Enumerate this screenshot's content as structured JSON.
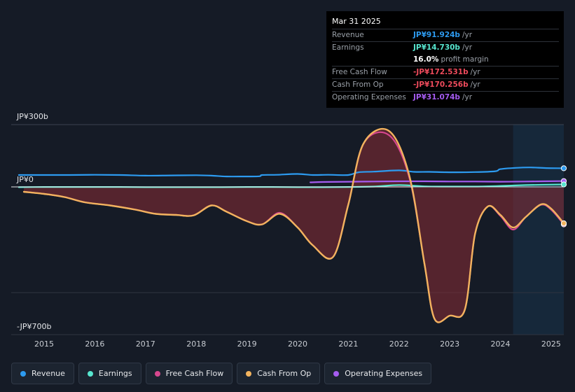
{
  "tooltip": {
    "date": "Mar 31 2025",
    "rows": [
      {
        "label": "Revenue",
        "value": "JP¥91.924b",
        "unit": "/yr",
        "color": "#2d9bf0"
      },
      {
        "label": "Earnings",
        "value": "JP¥14.730b",
        "unit": "/yr",
        "color": "#57e6cf"
      },
      {
        "label": "",
        "value": "16.0%",
        "unit": "profit margin",
        "color": "#ffffff"
      },
      {
        "label": "Free Cash Flow",
        "value": "-JP¥172.531b",
        "unit": "/yr",
        "color": "#ef4b5c"
      },
      {
        "label": "Cash From Op",
        "value": "-JP¥170.256b",
        "unit": "/yr",
        "color": "#ef4b5c"
      },
      {
        "label": "Operating Expenses",
        "value": "JP¥31.074b",
        "unit": "/yr",
        "color": "#a55cf0"
      }
    ]
  },
  "legend": [
    {
      "label": "Revenue",
      "color": "#2d9bf0"
    },
    {
      "label": "Earnings",
      "color": "#57e6cf"
    },
    {
      "label": "Free Cash Flow",
      "color": "#d6478e"
    },
    {
      "label": "Cash From Op",
      "color": "#f2b35e"
    },
    {
      "label": "Operating Expenses",
      "color": "#a55cf0"
    }
  ],
  "chart_data": {
    "type": "area",
    "title": "",
    "xlabel": "",
    "ylabel": "",
    "y_tick_labels": [
      "JP¥300b",
      "JP¥0",
      "-JP¥700b"
    ],
    "ylim": [
      -700,
      300
    ],
    "xlim": [
      2014.35,
      2025.25
    ],
    "x_tick_labels": [
      "2015",
      "2016",
      "2017",
      "2018",
      "2019",
      "2020",
      "2021",
      "2022",
      "2023",
      "2024",
      "2025"
    ],
    "x_ticks": [
      2015,
      2016,
      2017,
      2018,
      2019,
      2020,
      2021,
      2022,
      2023,
      2024,
      2025
    ],
    "forecast_region_start": 2024.25,
    "units": "JP¥b",
    "series": [
      {
        "name": "Revenue",
        "color": "#2d9bf0",
        "points": [
          [
            2014.5,
            60
          ],
          [
            2015,
            60
          ],
          [
            2015.5,
            60
          ],
          [
            2016,
            61
          ],
          [
            2016.5,
            60
          ],
          [
            2017,
            57
          ],
          [
            2017.5,
            58
          ],
          [
            2018,
            59
          ],
          [
            2018.3,
            57
          ],
          [
            2018.6,
            53
          ],
          [
            2019,
            53
          ],
          [
            2019.25,
            54
          ],
          [
            2019.3,
            60
          ],
          [
            2019.6,
            61
          ],
          [
            2020,
            65
          ],
          [
            2020.3,
            60
          ],
          [
            2020.6,
            61
          ],
          [
            2021,
            60
          ],
          [
            2021.2,
            73
          ],
          [
            2021.5,
            76
          ],
          [
            2022,
            82
          ],
          [
            2022.3,
            75
          ],
          [
            2022.6,
            75
          ],
          [
            2023,
            73
          ],
          [
            2023.5,
            74
          ],
          [
            2023.9,
            78
          ],
          [
            2024,
            88
          ],
          [
            2024.3,
            94
          ],
          [
            2024.6,
            96
          ],
          [
            2024.9,
            93
          ],
          [
            2025.25,
            92
          ]
        ]
      },
      {
        "name": "Earnings",
        "color": "#57e6cf",
        "points": [
          [
            2014.5,
            2
          ],
          [
            2015,
            3
          ],
          [
            2015.5,
            3
          ],
          [
            2016,
            3
          ],
          [
            2016.5,
            3
          ],
          [
            2017,
            2
          ],
          [
            2017.5,
            2
          ],
          [
            2018,
            2
          ],
          [
            2018.5,
            2
          ],
          [
            2019,
            3
          ],
          [
            2019.5,
            3
          ],
          [
            2020,
            2
          ],
          [
            2020.5,
            2
          ],
          [
            2021,
            3
          ],
          [
            2021.5,
            5
          ],
          [
            2022,
            12
          ],
          [
            2022.5,
            6
          ],
          [
            2023,
            5
          ],
          [
            2023.5,
            5
          ],
          [
            2024,
            8
          ],
          [
            2024.5,
            12
          ],
          [
            2025.25,
            15
          ]
        ]
      },
      {
        "name": "Free Cash Flow",
        "color": "#d6478e",
        "points": [
          [
            2014.6,
            -20
          ],
          [
            2015,
            -30
          ],
          [
            2015.4,
            -45
          ],
          [
            2015.8,
            -70
          ],
          [
            2016.3,
            -85
          ],
          [
            2016.8,
            -105
          ],
          [
            2017.2,
            -125
          ],
          [
            2017.6,
            -130
          ],
          [
            2017.95,
            -132
          ],
          [
            2018.3,
            -85
          ],
          [
            2018.6,
            -115
          ],
          [
            2019,
            -160
          ],
          [
            2019.3,
            -175
          ],
          [
            2019.65,
            -120
          ],
          [
            2020,
            -190
          ],
          [
            2020.3,
            -275
          ],
          [
            2020.7,
            -330
          ],
          [
            2021,
            -80
          ],
          [
            2021.3,
            210
          ],
          [
            2021.8,
            250
          ],
          [
            2022.2,
            50
          ],
          [
            2022.5,
            -360
          ],
          [
            2022.7,
            -625
          ],
          [
            2023,
            -610
          ],
          [
            2023.3,
            -580
          ],
          [
            2023.5,
            -220
          ],
          [
            2023.75,
            -90
          ],
          [
            2024,
            -135
          ],
          [
            2024.25,
            -200
          ],
          [
            2024.5,
            -140
          ],
          [
            2024.8,
            -82
          ],
          [
            2025,
            -105
          ],
          [
            2025.25,
            -175
          ]
        ]
      },
      {
        "name": "Cash From Op",
        "color": "#f2b35e",
        "points": [
          [
            2014.6,
            -20
          ],
          [
            2015,
            -30
          ],
          [
            2015.4,
            -45
          ],
          [
            2015.8,
            -70
          ],
          [
            2016.3,
            -85
          ],
          [
            2016.8,
            -105
          ],
          [
            2017.2,
            -125
          ],
          [
            2017.6,
            -130
          ],
          [
            2017.95,
            -132
          ],
          [
            2018.3,
            -85
          ],
          [
            2018.6,
            -115
          ],
          [
            2019,
            -160
          ],
          [
            2019.3,
            -175
          ],
          [
            2019.65,
            -125
          ],
          [
            2020,
            -190
          ],
          [
            2020.3,
            -275
          ],
          [
            2020.7,
            -330
          ],
          [
            2021,
            -80
          ],
          [
            2021.3,
            210
          ],
          [
            2021.8,
            270
          ],
          [
            2022.2,
            60
          ],
          [
            2022.5,
            -360
          ],
          [
            2022.7,
            -625
          ],
          [
            2023,
            -610
          ],
          [
            2023.3,
            -580
          ],
          [
            2023.5,
            -220
          ],
          [
            2023.75,
            -90
          ],
          [
            2024,
            -130
          ],
          [
            2024.25,
            -190
          ],
          [
            2024.5,
            -140
          ],
          [
            2024.8,
            -80
          ],
          [
            2025,
            -100
          ],
          [
            2025.25,
            -170
          ]
        ]
      },
      {
        "name": "Operating Expenses",
        "color": "#a55cf0",
        "points": [
          [
            2020.25,
            25
          ],
          [
            2020.6,
            27
          ],
          [
            2021,
            28
          ],
          [
            2021.5,
            29
          ],
          [
            2022,
            30
          ],
          [
            2022.5,
            30
          ],
          [
            2023,
            29
          ],
          [
            2023.5,
            29
          ],
          [
            2024,
            28
          ],
          [
            2024.5,
            29
          ],
          [
            2025.25,
            31
          ]
        ]
      }
    ]
  }
}
